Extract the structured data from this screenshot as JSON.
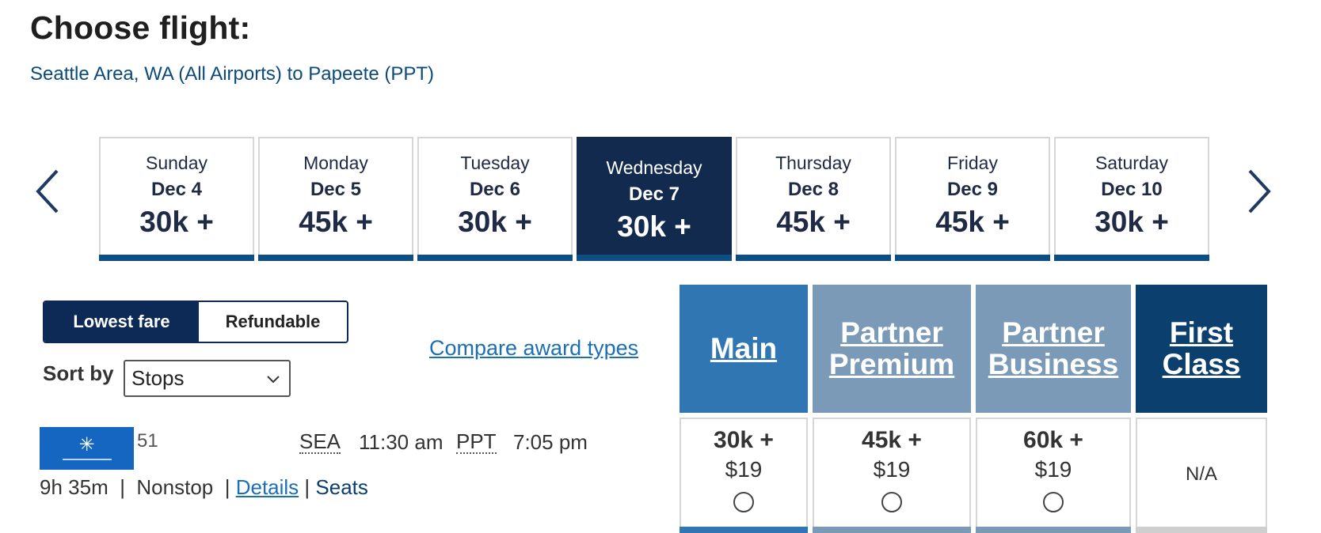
{
  "header": {
    "title": "Choose flight:",
    "route": "Seattle Area, WA (All Airports) to Papeete (PPT)"
  },
  "date_nav": {
    "prev_icon": "chevron-left-icon",
    "next_icon": "chevron-right-icon",
    "days": [
      {
        "dow": "Sunday",
        "date": "Dec 4",
        "points": "30k +"
      },
      {
        "dow": "Monday",
        "date": "Dec 5",
        "points": "45k +"
      },
      {
        "dow": "Tuesday",
        "date": "Dec 6",
        "points": "30k +"
      },
      {
        "dow": "Wednesday",
        "date": "Dec 7",
        "points": "30k +",
        "selected": true
      },
      {
        "dow": "Thursday",
        "date": "Dec 8",
        "points": "45k +"
      },
      {
        "dow": "Friday",
        "date": "Dec 9",
        "points": "45k +"
      },
      {
        "dow": "Saturday",
        "date": "Dec 10",
        "points": "30k +"
      }
    ]
  },
  "fare_toggle": {
    "lowest": "Lowest fare",
    "refundable": "Refundable"
  },
  "sort": {
    "label": "Sort by",
    "value": "Stops"
  },
  "compare_link": "Compare award types",
  "fare_classes": [
    {
      "name": "Main",
      "color": "#2f76b2"
    },
    {
      "name": "Partner Premium",
      "color": "#7b9ab8"
    },
    {
      "name": "Partner Business",
      "color": "#7b9ab8"
    },
    {
      "name": "First Class",
      "color": "#0b3f6e"
    }
  ],
  "flight": {
    "airline_logo": "air-tahiti-nui-logo",
    "number": "51",
    "dep_code": "SEA",
    "dep_time": "11:30 am",
    "arr_code": "PPT",
    "arr_time": "7:05 pm",
    "duration": "9h 35m",
    "sep1": "|",
    "stops": "Nonstop",
    "sep2": "|",
    "details": "Details",
    "sep3": "|",
    "seats": "Seats",
    "fares": [
      {
        "points": "30k +",
        "tax": "$19"
      },
      {
        "points": "45k +",
        "tax": "$19"
      },
      {
        "points": "60k +",
        "tax": "$19"
      },
      {
        "na": "N/A"
      }
    ]
  }
}
